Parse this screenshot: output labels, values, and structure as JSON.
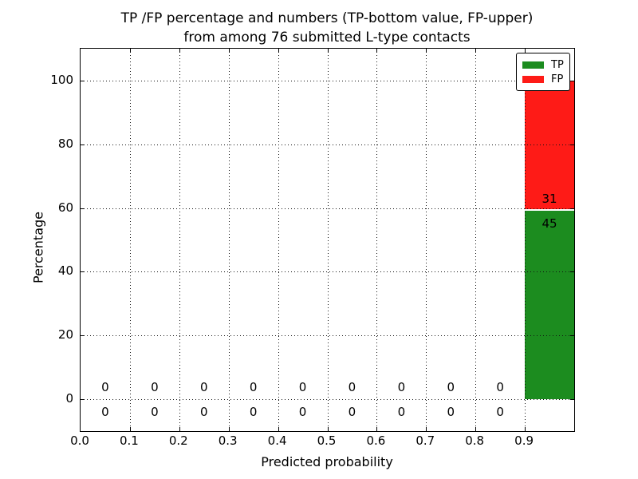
{
  "figure": {
    "title_line1": "TP /FP percentage and numbers (TP-bottom value, FP-upper)",
    "title_line2": "from among 76 submitted L-type contacts"
  },
  "chart_data": {
    "type": "bar",
    "stacked": true,
    "title": "TP /FP percentage and numbers (TP-bottom value, FP-upper) from among 76 submitted L-type contacts",
    "xlabel": "Predicted probability",
    "ylabel": "Percentage",
    "total_submitted": 76,
    "bin_width": 0.1,
    "bin_centers": [
      0.05,
      0.15,
      0.25,
      0.35,
      0.45,
      0.55,
      0.65,
      0.75,
      0.85,
      0.95
    ],
    "series": [
      {
        "name": "TP",
        "color": "#1c8c1f",
        "counts": [
          0,
          0,
          0,
          0,
          0,
          0,
          0,
          0,
          0,
          45
        ],
        "percentages": [
          0,
          0,
          0,
          0,
          0,
          0,
          0,
          0,
          0,
          59.2
        ]
      },
      {
        "name": "FP",
        "color": "#fe1b17",
        "counts": [
          0,
          0,
          0,
          0,
          0,
          0,
          0,
          0,
          0,
          31
        ],
        "percentages": [
          0,
          0,
          0,
          0,
          0,
          0,
          0,
          0,
          0,
          40.8
        ]
      }
    ],
    "xlim": [
      0.0,
      1.0
    ],
    "ylim": [
      -10,
      110
    ],
    "xtick_values": [
      0.0,
      0.1,
      0.2,
      0.3,
      0.4,
      0.5,
      0.6,
      0.7,
      0.8,
      0.9
    ],
    "xtick_labels": [
      "0.0",
      "0.1",
      "0.2",
      "0.3",
      "0.4",
      "0.5",
      "0.6",
      "0.7",
      "0.8",
      "0.9"
    ],
    "ytick_values": [
      0,
      20,
      40,
      60,
      80,
      100
    ],
    "ytick_labels": [
      "0",
      "20",
      "40",
      "60",
      "80",
      "100"
    ],
    "grid": "dotted",
    "legend": {
      "position": "upper right",
      "entries": [
        "TP",
        "FP"
      ]
    }
  }
}
